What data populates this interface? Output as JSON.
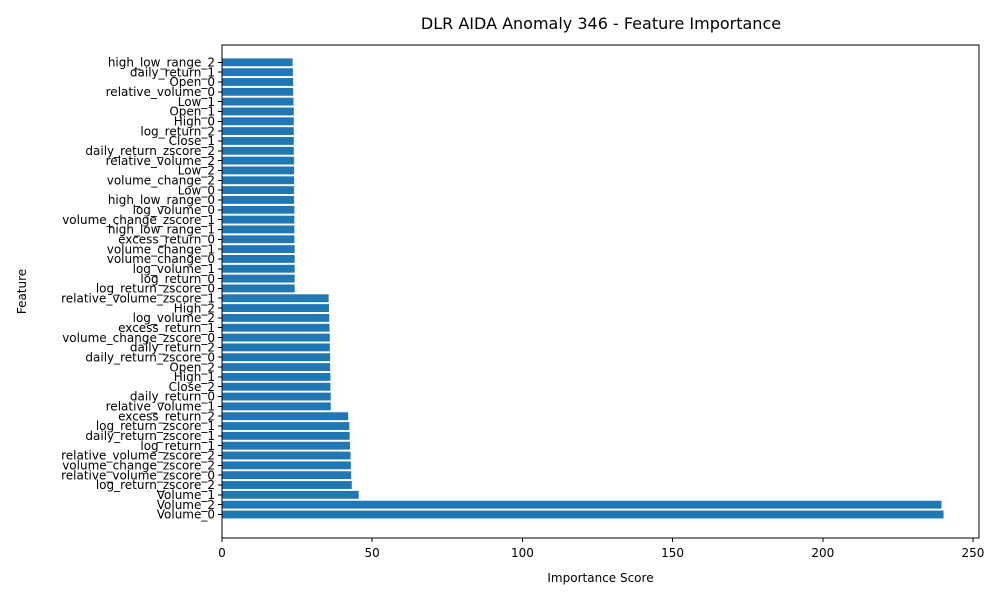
{
  "chart_data": {
    "type": "bar",
    "orientation": "horizontal",
    "title": "DLR AIDA Anomaly 346 - Feature Importance",
    "xlabel": "Importance Score",
    "ylabel": "Feature",
    "xlim": [
      0,
      252
    ],
    "xticks": [
      0,
      50,
      100,
      150,
      200,
      250
    ],
    "grid": false,
    "bar_color": "#1f77b4",
    "categories": [
      "Volume_0",
      "Volume_2",
      "Volume_1",
      "log_return_zscore_2",
      "relative_volume_zscore_0",
      "volume_change_zscore_2",
      "relative_volume_zscore_2",
      "log_return_1",
      "daily_return_zscore_1",
      "log_return_zscore_1",
      "excess_return_2",
      "relative_volume_1",
      "daily_return_0",
      "Close_2",
      "High_1",
      "Open_2",
      "daily_return_zscore_0",
      "daily_return_2",
      "volume_change_zscore_0",
      "excess_return_1",
      "log_volume_2",
      "High_2",
      "relative_volume_zscore_1",
      "log_return_zscore_0",
      "log_return_0",
      "log_volume_1",
      "volume_change_0",
      "volume_change_1",
      "excess_return_0",
      "high_low_range_1",
      "volume_change_zscore_1",
      "log_volume_0",
      "high_low_range_0",
      "Low_0",
      "volume_change_2",
      "Low_2",
      "relative_volume_2",
      "daily_return_zscore_2",
      "Close_1",
      "log_return_2",
      "High_0",
      "Open_1",
      "Low_1",
      "relative_volume_0",
      "Open_0",
      "daily_return_1",
      "high_low_range_2"
    ],
    "values": [
      240.2,
      239.5,
      45.5,
      43.2,
      43.0,
      42.9,
      42.8,
      42.6,
      42.5,
      42.4,
      42.0,
      36.2,
      36.2,
      36.1,
      36.1,
      36.0,
      36.0,
      35.9,
      35.9,
      35.8,
      35.7,
      35.6,
      35.5,
      24.2,
      24.2,
      24.2,
      24.2,
      24.2,
      24.1,
      24.1,
      24.1,
      24.1,
      24.0,
      24.0,
      24.0,
      24.0,
      24.0,
      23.9,
      23.9,
      23.9,
      23.9,
      23.9,
      23.8,
      23.7,
      23.7,
      23.6,
      23.5
    ]
  }
}
